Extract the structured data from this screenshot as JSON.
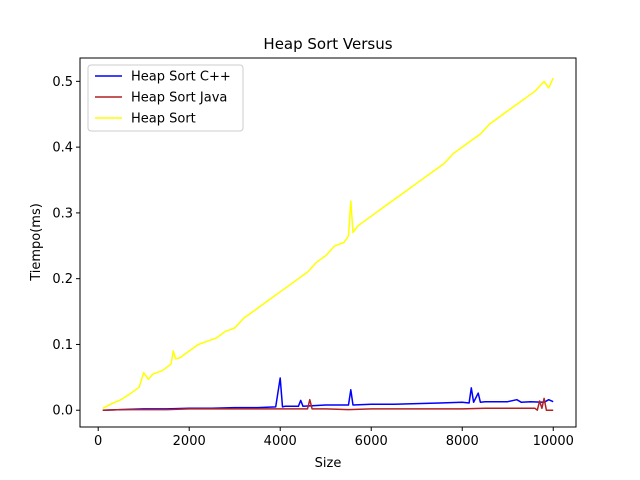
{
  "chart_data": {
    "type": "line",
    "title": "Heap Sort Versus",
    "xlabel": "Size",
    "ylabel": "Tiempo(ms)",
    "xlim": [
      -400,
      10500
    ],
    "ylim": [
      -0.0255,
      0.5355
    ],
    "xticks": [
      0,
      2000,
      4000,
      6000,
      8000,
      10000
    ],
    "xtick_labels": [
      "0",
      "2000",
      "4000",
      "6000",
      "8000",
      "10000"
    ],
    "yticks": [
      0.0,
      0.1,
      0.2,
      0.3,
      0.4,
      0.5
    ],
    "ytick_labels": [
      "0.0",
      "0.1",
      "0.2",
      "0.3",
      "0.4",
      "0.5"
    ],
    "grid": false,
    "legend_position": "top-left",
    "series": [
      {
        "name": "Heap Sort C++",
        "color": "#0000ff",
        "x": [
          100,
          500,
          1000,
          1500,
          2000,
          2500,
          3000,
          3500,
          3900,
          4000,
          4050,
          4100,
          4400,
          4450,
          4500,
          5000,
          5500,
          5550,
          5600,
          6000,
          6500,
          7000,
          7500,
          8000,
          8150,
          8200,
          8250,
          8350,
          8400,
          8500,
          9000,
          9200,
          9300,
          9500,
          9800,
          9900,
          10000
        ],
        "values": [
          0.0,
          0.001,
          0.002,
          0.002,
          0.003,
          0.003,
          0.004,
          0.004,
          0.005,
          0.049,
          0.005,
          0.006,
          0.006,
          0.015,
          0.006,
          0.008,
          0.008,
          0.031,
          0.008,
          0.009,
          0.009,
          0.01,
          0.011,
          0.012,
          0.011,
          0.034,
          0.012,
          0.026,
          0.012,
          0.013,
          0.013,
          0.016,
          0.012,
          0.013,
          0.012,
          0.016,
          0.013
        ]
      },
      {
        "name": "Heap Sort Java",
        "color": "#b22222",
        "x": [
          100,
          500,
          1000,
          1500,
          2000,
          2500,
          3000,
          3500,
          4000,
          4500,
          4600,
          4650,
          4700,
          5000,
          5500,
          6000,
          6500,
          7000,
          7500,
          8000,
          8500,
          9000,
          9500,
          9600,
          9650,
          9700,
          9750,
          9800,
          9850,
          10000
        ],
        "values": [
          0.0,
          0.001,
          0.001,
          0.001,
          0.002,
          0.002,
          0.002,
          0.002,
          0.002,
          0.002,
          0.002,
          0.016,
          0.002,
          0.002,
          0.001,
          0.002,
          0.002,
          0.002,
          0.002,
          0.002,
          0.003,
          0.003,
          0.003,
          0.003,
          0.0,
          0.014,
          0.003,
          0.018,
          0.0,
          0.0
        ]
      },
      {
        "name": "Heap Sort",
        "color": "#ffff00",
        "x": [
          100,
          300,
          500,
          700,
          900,
          1000,
          1100,
          1200,
          1400,
          1600,
          1650,
          1700,
          1800,
          2000,
          2200,
          2400,
          2600,
          2800,
          3000,
          3200,
          3400,
          3600,
          3800,
          4000,
          4200,
          4400,
          4600,
          4800,
          5000,
          5200,
          5400,
          5500,
          5550,
          5600,
          5700,
          5800,
          6000,
          6200,
          6400,
          6600,
          6800,
          7000,
          7200,
          7400,
          7600,
          7800,
          8000,
          8200,
          8400,
          8600,
          8800,
          9000,
          9200,
          9400,
          9600,
          9800,
          9900,
          10000
        ],
        "values": [
          0.003,
          0.01,
          0.016,
          0.025,
          0.035,
          0.057,
          0.047,
          0.055,
          0.06,
          0.07,
          0.09,
          0.078,
          0.08,
          0.09,
          0.1,
          0.105,
          0.11,
          0.12,
          0.125,
          0.14,
          0.15,
          0.16,
          0.17,
          0.18,
          0.19,
          0.2,
          0.21,
          0.225,
          0.235,
          0.25,
          0.255,
          0.265,
          0.318,
          0.27,
          0.28,
          0.285,
          0.295,
          0.305,
          0.315,
          0.325,
          0.335,
          0.345,
          0.355,
          0.365,
          0.375,
          0.39,
          0.4,
          0.41,
          0.42,
          0.435,
          0.445,
          0.455,
          0.465,
          0.475,
          0.485,
          0.5,
          0.49,
          0.505
        ]
      }
    ]
  }
}
